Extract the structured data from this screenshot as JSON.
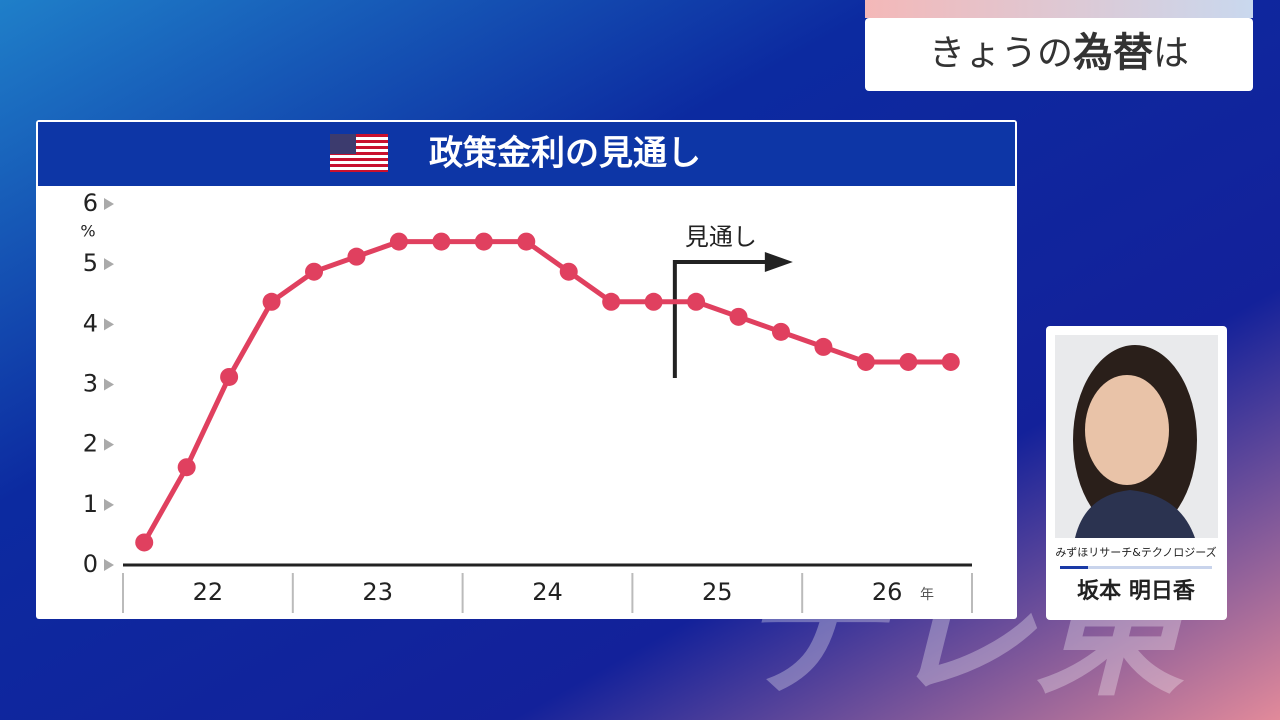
{
  "header": {
    "prefix": "きょうの",
    "emphasis": "為替",
    "suffix": "は"
  },
  "chart_data": {
    "type": "line",
    "title": "政策金利の見通し",
    "x": [
      22.125,
      22.375,
      22.625,
      22.875,
      23.125,
      23.375,
      23.625,
      23.875,
      24.125,
      24.375,
      24.625,
      24.875,
      25.125,
      25.375,
      25.625,
      25.875,
      26.125,
      26.375,
      26.625,
      26.875
    ],
    "values": [
      0.375,
      1.625,
      3.125,
      4.375,
      4.875,
      5.125,
      5.375,
      5.375,
      5.375,
      5.375,
      4.875,
      4.375,
      4.375,
      4.375,
      4.125,
      3.875,
      3.625,
      3.375,
      3.375,
      3.375
    ],
    "color": "#e0405f",
    "xlim": [
      22,
      27
    ],
    "xticks": [
      22,
      23,
      24,
      25,
      26,
      27
    ],
    "x_unit": "年",
    "ylim": [
      0,
      6
    ],
    "yticks": [
      0,
      1,
      2,
      3,
      4,
      5,
      6
    ],
    "y_unit": "%",
    "grid": false,
    "forecast_start": 25.25,
    "forecast_label": "見通し"
  },
  "presenter": {
    "organization": "みずほリサーチ&テクノロジーズ",
    "family_name": "坂本",
    "given_name": "明日香"
  },
  "watermark": "テレ東"
}
